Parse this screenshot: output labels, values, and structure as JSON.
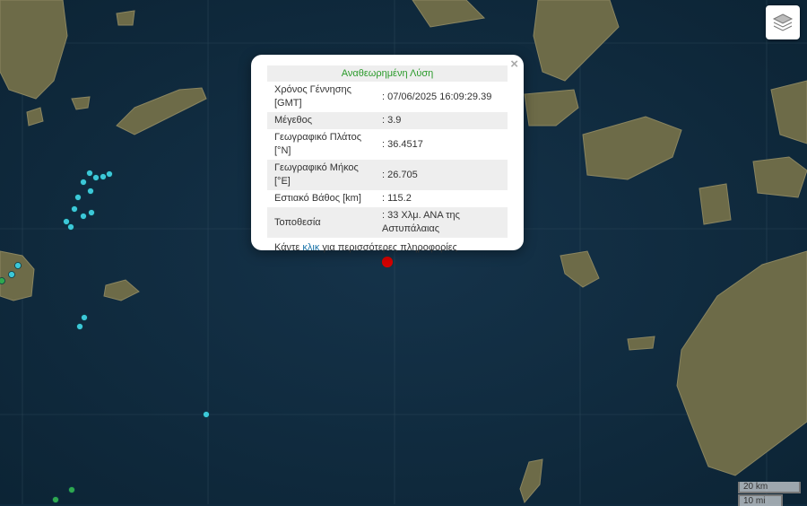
{
  "popup": {
    "title": "Αναθεωρημένη Λύση",
    "rows": [
      {
        "label": "Χρόνος Γέννησης [GMT]",
        "value": ": 07/06/2025 16:09:29.39"
      },
      {
        "label": "Μέγεθος",
        "value": ": 3.9"
      },
      {
        "label": "Γεωγραφικό Πλάτος [°N]",
        "value": ": 36.4517"
      },
      {
        "label": "Γεωγραφικό Μήκος [°E]",
        "value": ": 26.705"
      },
      {
        "label": "Εστιακό Βάθος [km]",
        "value": ": 115.2"
      },
      {
        "label": "Τοποθεσία",
        "value": ": 33 Χλμ. ΑΝΑ της Αστυπάλαιας"
      }
    ],
    "more_prefix": "Κάντε ",
    "more_link": "κλικ",
    "more_suffix": " για περισσότερες πληροφορίες",
    "close": "×"
  },
  "scale": {
    "km": "20 km",
    "mi": "10 mi"
  },
  "controls": {
    "layers_icon": "layers-icon"
  },
  "colors": {
    "sea": "#0f2a3e",
    "land": "#6b6a45",
    "selected_event": "#d40000",
    "recent_event": "#3cc8d8",
    "older_event": "#2fa84f",
    "title_green": "#2a9a2a"
  }
}
